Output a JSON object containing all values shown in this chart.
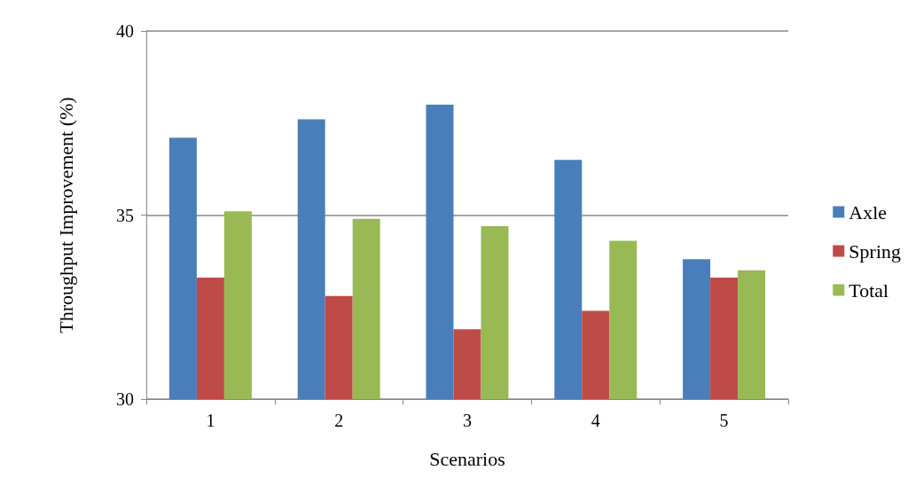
{
  "chart_data": {
    "type": "bar",
    "xlabel": "Scenarios",
    "ylabel": "Throughput Improvement (%)",
    "categories": [
      "1",
      "2",
      "3",
      "4",
      "5"
    ],
    "series": [
      {
        "name": "Axle",
        "color": "#4a7ebb",
        "values": [
          37.1,
          37.6,
          38.0,
          36.5,
          33.8
        ]
      },
      {
        "name": "Spring",
        "color": "#be4b48",
        "values": [
          33.3,
          32.8,
          31.9,
          32.4,
          33.3
        ]
      },
      {
        "name": "Total",
        "color": "#98b954",
        "values": [
          35.1,
          34.9,
          34.7,
          34.3,
          33.5
        ]
      }
    ],
    "ylim": [
      30,
      40
    ],
    "yticks": [
      30,
      35,
      40
    ],
    "grid": "y",
    "legend": "right"
  }
}
